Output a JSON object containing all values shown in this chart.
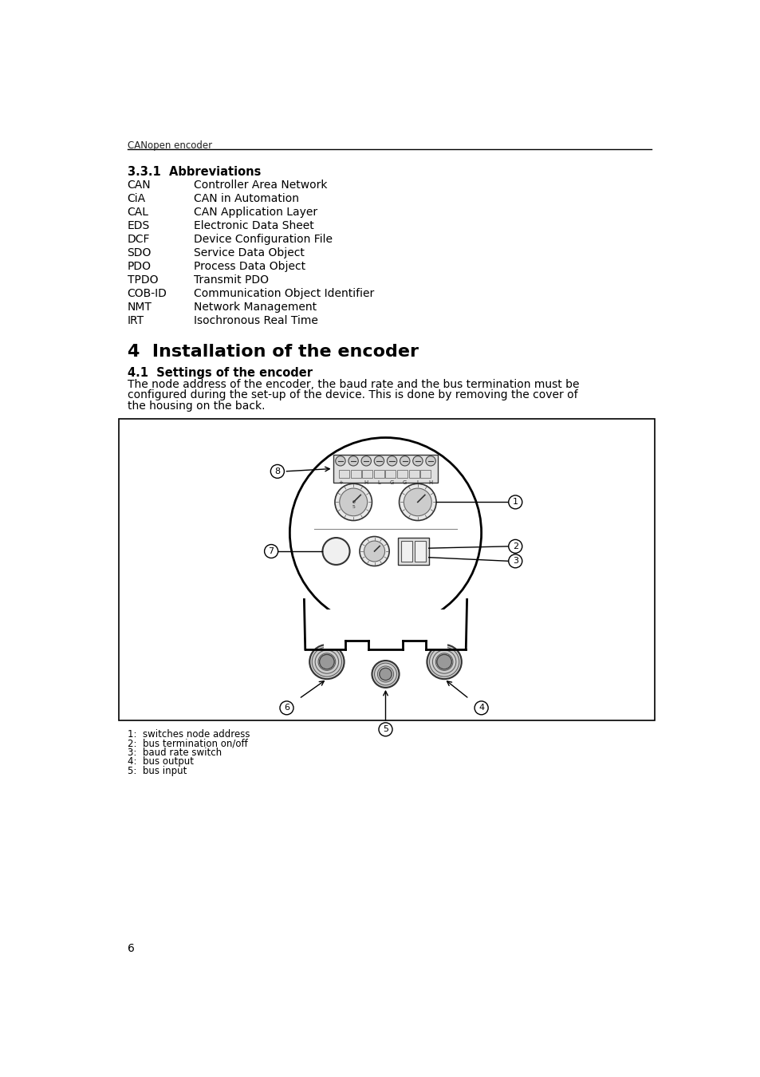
{
  "header_text": "CANopen encoder",
  "abbreviations": [
    [
      "CAN",
      "Controller Area Network"
    ],
    [
      "CiA",
      "CAN in Automation"
    ],
    [
      "CAL",
      "CAN Application Layer"
    ],
    [
      "EDS",
      "Electronic Data Sheet"
    ],
    [
      "DCF",
      "Device Configuration File"
    ],
    [
      "SDO",
      "Service Data Object"
    ],
    [
      "PDO",
      "Process Data Object"
    ],
    [
      "TPDO",
      "Transmit PDO"
    ],
    [
      "COB-ID",
      "Communication Object Identifier"
    ],
    [
      "NMT",
      "Network Management"
    ],
    [
      "IRT",
      "Isochronous Real Time"
    ]
  ],
  "footnotes": [
    "1:  switches node address",
    "2:  bus termination on/off",
    "3:  baud rate switch",
    "4:  bus output",
    "5:  bus input"
  ],
  "page_number": "6",
  "body_text_lines": [
    "The node address of the encoder, the baud rate and the bus termination must be",
    "configured during the set-up of the device. This is done by removing the cover of",
    "the housing on the back."
  ]
}
